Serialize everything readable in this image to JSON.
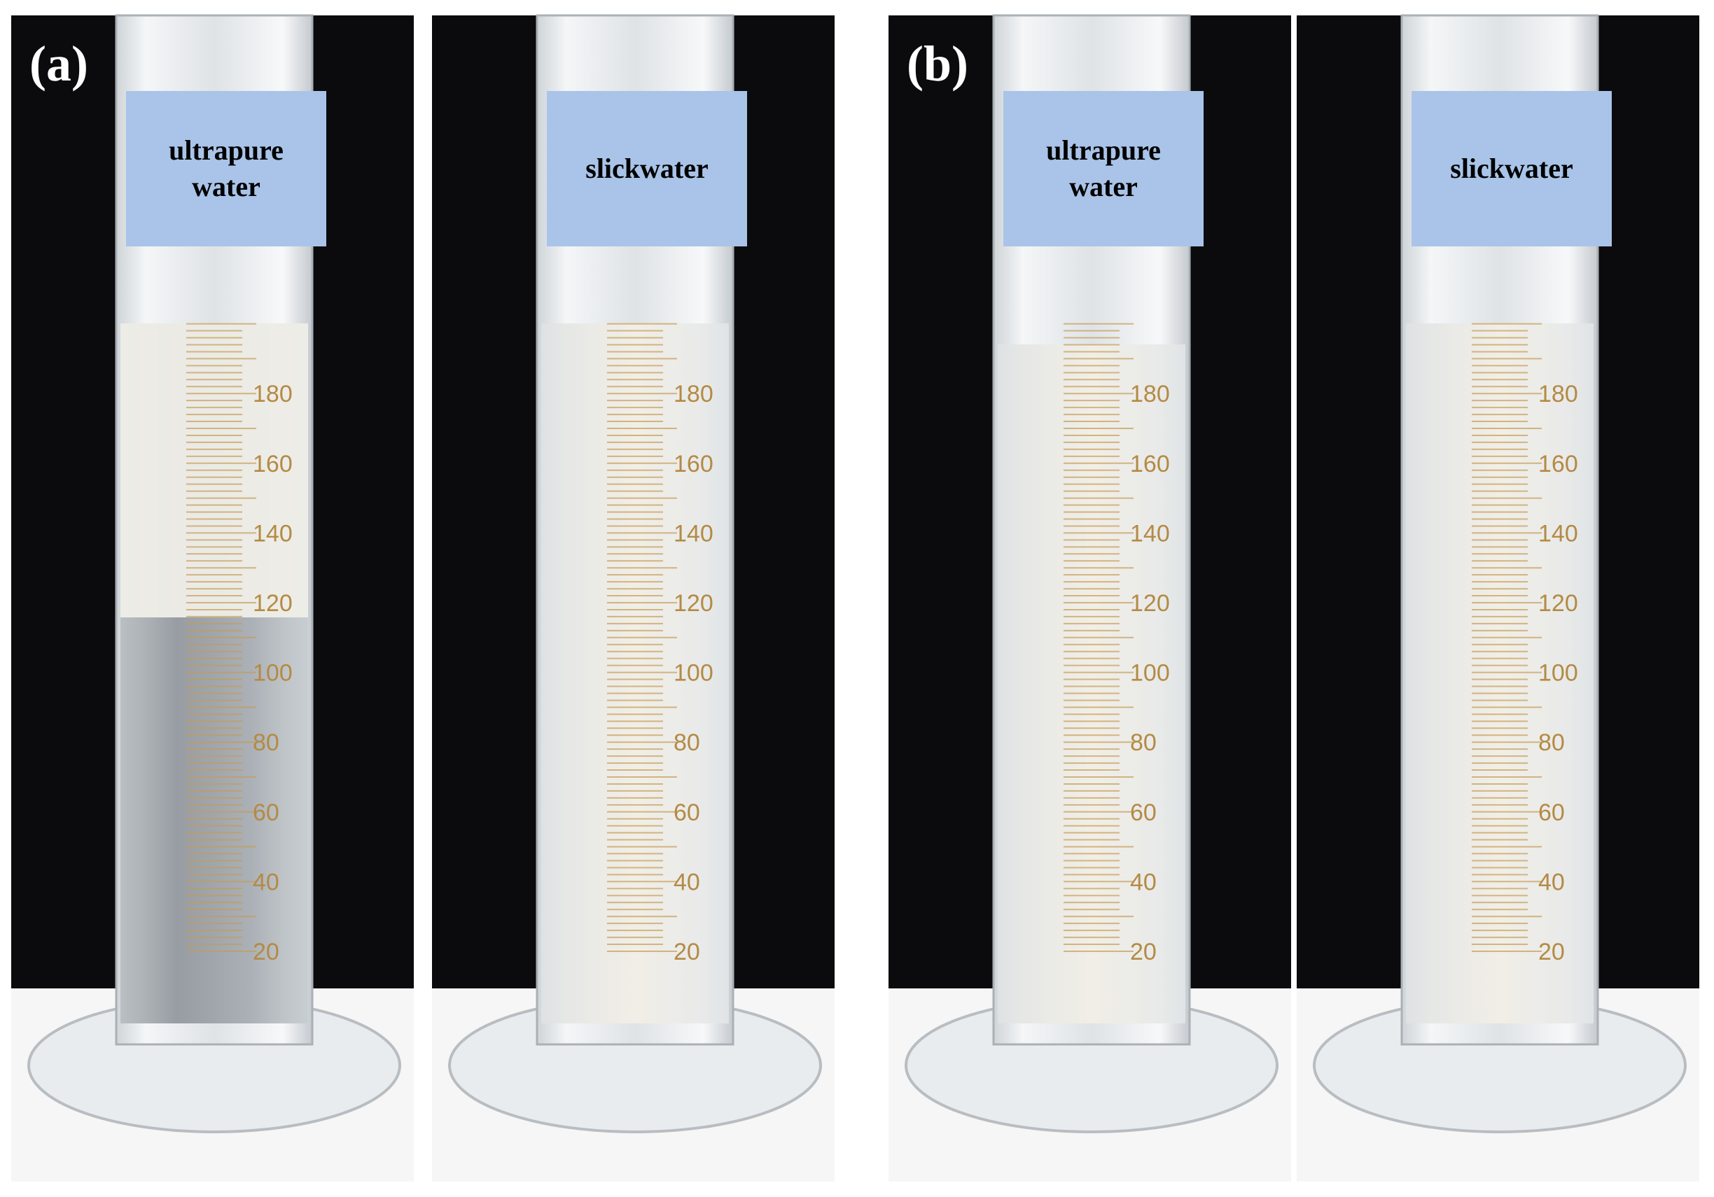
{
  "panels": [
    {
      "label": "(a)",
      "cylinders": [
        {
          "label": "ultrapure water",
          "graduations": [
            20,
            40,
            60,
            80,
            100,
            120,
            140,
            160,
            180
          ]
        },
        {
          "label": "slickwater",
          "graduations": [
            20,
            40,
            60,
            80,
            100,
            120,
            140,
            160,
            180
          ]
        }
      ]
    },
    {
      "label": "(b)",
      "cylinders": [
        {
          "label": "ultrapure water",
          "graduations": [
            20,
            40,
            60,
            80,
            100,
            120,
            140,
            160,
            180
          ]
        },
        {
          "label": "slickwater",
          "graduations": [
            20,
            40,
            60,
            80,
            100,
            120,
            140,
            160,
            180
          ]
        }
      ]
    }
  ]
}
